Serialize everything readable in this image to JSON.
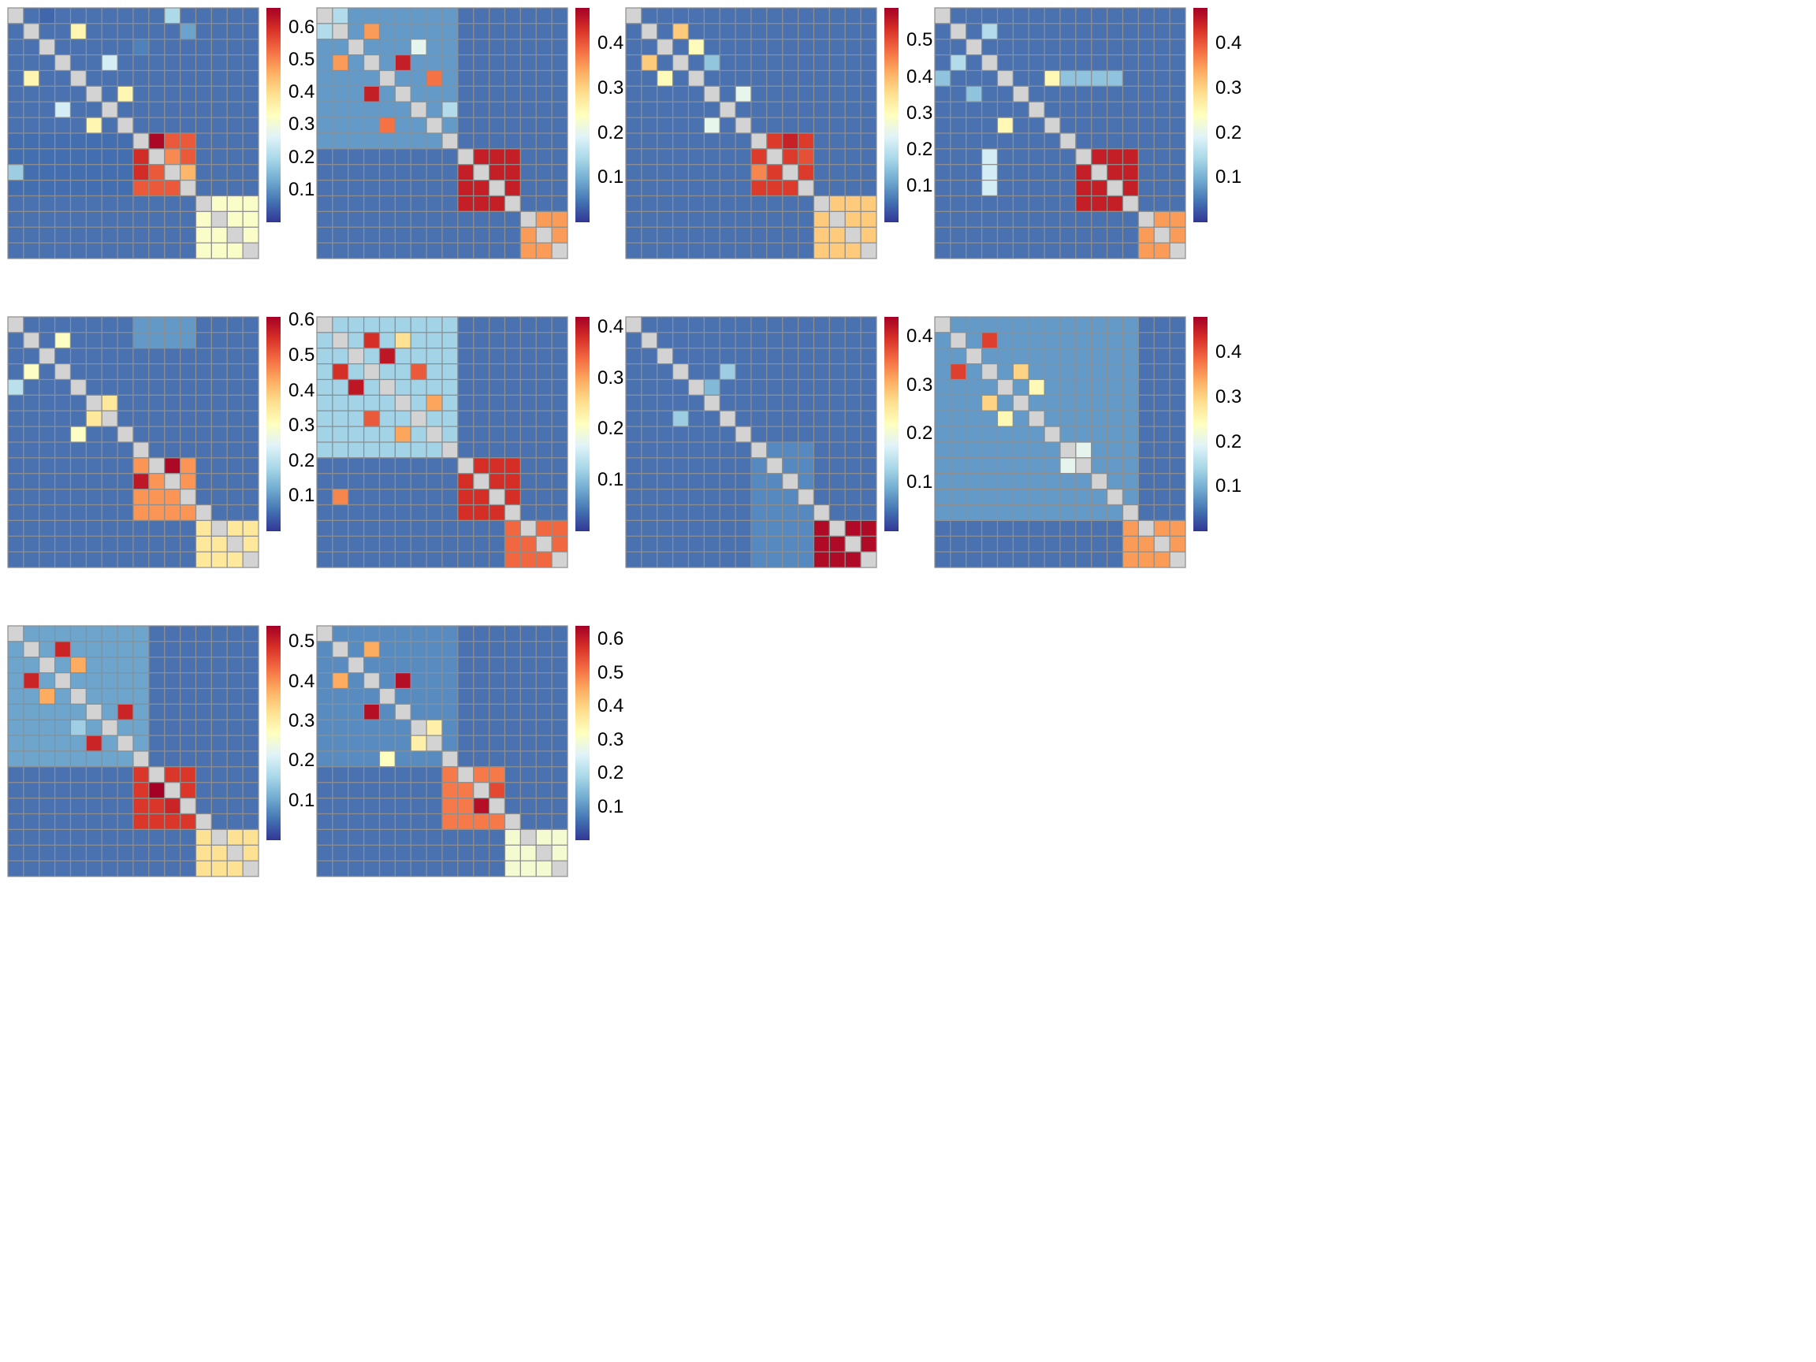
{
  "figure": {
    "layout": "grid",
    "rows": 3,
    "cols": 4
  },
  "colors": {
    "scale": [
      "#313695",
      "#4575b4",
      "#74add1",
      "#abd9e9",
      "#e0f3f8",
      "#ffffbf",
      "#fee090",
      "#fdae61",
      "#f46d43",
      "#d73027",
      "#a50026"
    ],
    "background": "#4a72b0",
    "diagonal": "#d3d3d3",
    "grid": "#8e8e8e"
  },
  "chart_data": [
    {
      "type": "heatmap",
      "size": 16,
      "colorbar": {
        "min": 0,
        "max": 0.66,
        "ticks": [
          0.1,
          0.2,
          0.3,
          0.4,
          0.5,
          0.6
        ],
        "tick_labels": [
          "0.1",
          "0.2",
          "0.3",
          "0.4",
          "0.5",
          "0.6"
        ]
      },
      "blocks": [
        {
          "rows": [
            8,
            11
          ],
          "cols": [
            8,
            11
          ],
          "value": 0.55
        },
        {
          "rows": [
            12,
            15
          ],
          "cols": [
            12,
            15
          ],
          "value": 0.32
        },
        {
          "rows": [
            8,
            11
          ],
          "cols": [
            0,
            7
          ],
          "value": 0.06
        }
      ],
      "cells": [
        [
          0,
          2,
          0.05
        ],
        [
          1,
          4,
          0.35
        ],
        [
          4,
          1,
          0.35
        ],
        [
          3,
          6,
          0.25
        ],
        [
          6,
          3,
          0.25
        ],
        [
          5,
          7,
          0.35
        ],
        [
          7,
          5,
          0.35
        ],
        [
          2,
          8,
          0.08
        ],
        [
          0,
          10,
          0.2
        ],
        [
          10,
          0,
          0.18
        ],
        [
          1,
          11,
          0.12
        ],
        [
          8,
          9,
          0.65
        ],
        [
          9,
          10,
          0.5
        ],
        [
          10,
          11,
          0.45
        ],
        [
          11,
          8,
          0.55
        ],
        [
          9,
          8,
          0.6
        ],
        [
          10,
          8,
          0.6
        ]
      ]
    },
    {
      "type": "heatmap",
      "size": 16,
      "colorbar": {
        "min": 0,
        "max": 0.48,
        "ticks": [
          0.1,
          0.2,
          0.3,
          0.4
        ],
        "tick_labels": [
          "0.1",
          "0.2",
          "0.3",
          "0.4"
        ]
      },
      "blocks": [
        {
          "rows": [
            9,
            12
          ],
          "cols": [
            9,
            12
          ],
          "value": 0.45
        },
        {
          "rows": [
            13,
            15
          ],
          "cols": [
            13,
            15
          ],
          "value": 0.35
        },
        {
          "rows": [
            0,
            8
          ],
          "cols": [
            0,
            8
          ],
          "value": 0.08
        }
      ],
      "cells": [
        [
          1,
          3,
          0.35
        ],
        [
          3,
          1,
          0.35
        ],
        [
          3,
          5,
          0.45
        ],
        [
          5,
          3,
          0.45
        ],
        [
          4,
          7,
          0.38
        ],
        [
          7,
          4,
          0.38
        ],
        [
          6,
          8,
          0.15
        ],
        [
          2,
          6,
          0.2
        ],
        [
          1,
          0,
          0.15
        ],
        [
          0,
          1,
          0.15
        ]
      ]
    },
    {
      "type": "heatmap",
      "size": 16,
      "colorbar": {
        "min": 0,
        "max": 0.59,
        "ticks": [
          0.1,
          0.2,
          0.3,
          0.4,
          0.5
        ],
        "tick_labels": [
          "0.1",
          "0.2",
          "0.3",
          "0.4",
          "0.5"
        ]
      },
      "blocks": [
        {
          "rows": [
            8,
            11
          ],
          "cols": [
            8,
            11
          ],
          "value": 0.52
        },
        {
          "rows": [
            12,
            15
          ],
          "cols": [
            12,
            15
          ],
          "value": 0.38
        }
      ],
      "cells": [
        [
          1,
          3,
          0.38
        ],
        [
          3,
          1,
          0.38
        ],
        [
          2,
          4,
          0.3
        ],
        [
          4,
          2,
          0.3
        ],
        [
          5,
          7,
          0.25
        ],
        [
          7,
          5,
          0.25
        ],
        [
          3,
          5,
          0.15
        ],
        [
          8,
          10,
          0.55
        ],
        [
          9,
          11,
          0.5
        ],
        [
          10,
          8,
          0.45
        ]
      ]
    },
    {
      "type": "heatmap",
      "size": 16,
      "colorbar": {
        "min": 0,
        "max": 0.48,
        "ticks": [
          0.1,
          0.2,
          0.3,
          0.4
        ],
        "tick_labels": [
          "0.1",
          "0.2",
          "0.3",
          "0.4"
        ]
      },
      "blocks": [
        {
          "rows": [
            9,
            12
          ],
          "cols": [
            9,
            12
          ],
          "value": 0.45
        },
        {
          "rows": [
            13,
            15
          ],
          "cols": [
            13,
            15
          ],
          "value": 0.35
        },
        {
          "rows": [
            4,
            4
          ],
          "cols": [
            8,
            11
          ],
          "value": 0.12
        }
      ],
      "cells": [
        [
          1,
          3,
          0.15
        ],
        [
          3,
          1,
          0.15
        ],
        [
          4,
          0,
          0.12
        ],
        [
          7,
          4,
          0.25
        ],
        [
          4,
          7,
          0.25
        ],
        [
          5,
          2,
          0.12
        ],
        [
          9,
          3,
          0.18
        ],
        [
          10,
          3,
          0.18
        ],
        [
          11,
          3,
          0.18
        ]
      ]
    },
    {
      "type": "heatmap",
      "size": 16,
      "colorbar": {
        "min": 0,
        "max": 0.61,
        "ticks": [
          0.1,
          0.2,
          0.3,
          0.4,
          0.5,
          0.6
        ],
        "tick_labels": [
          "0.1",
          "0.2",
          "0.3",
          "0.4",
          "0.5",
          "0.6"
        ]
      },
      "blocks": [
        {
          "rows": [
            9,
            12
          ],
          "cols": [
            8,
            11
          ],
          "value": 0.45
        },
        {
          "rows": [
            13,
            15
          ],
          "cols": [
            12,
            15
          ],
          "value": 0.35
        },
        {
          "rows": [
            0,
            1
          ],
          "cols": [
            8,
            11
          ],
          "value": 0.1
        }
      ],
      "cells": [
        [
          1,
          3,
          0.3
        ],
        [
          3,
          1,
          0.3
        ],
        [
          4,
          0,
          0.2
        ],
        [
          5,
          6,
          0.35
        ],
        [
          6,
          5,
          0.35
        ],
        [
          7,
          4,
          0.3
        ],
        [
          9,
          10,
          0.6
        ],
        [
          10,
          8,
          0.58
        ],
        [
          11,
          9,
          0.45
        ]
      ]
    },
    {
      "type": "heatmap",
      "size": 16,
      "colorbar": {
        "min": 0,
        "max": 0.42,
        "ticks": [
          0.1,
          0.2,
          0.3,
          0.4
        ],
        "tick_labels": [
          "0.1",
          "0.2",
          "0.3",
          "0.4"
        ]
      },
      "blocks": [
        {
          "rows": [
            9,
            12
          ],
          "cols": [
            9,
            12
          ],
          "value": 0.38
        },
        {
          "rows": [
            13,
            15
          ],
          "cols": [
            12,
            15
          ],
          "value": 0.34
        },
        {
          "rows": [
            0,
            8
          ],
          "cols": [
            0,
            8
          ],
          "value": 0.12
        }
      ],
      "cells": [
        [
          1,
          3,
          0.38
        ],
        [
          3,
          1,
          0.38
        ],
        [
          4,
          2,
          0.4
        ],
        [
          2,
          4,
          0.4
        ],
        [
          6,
          3,
          0.35
        ],
        [
          3,
          6,
          0.35
        ],
        [
          7,
          5,
          0.3
        ],
        [
          5,
          7,
          0.3
        ],
        [
          1,
          5,
          0.25
        ],
        [
          11,
          1,
          0.32
        ]
      ]
    },
    {
      "type": "heatmap",
      "size": 16,
      "colorbar": {
        "min": 0,
        "max": 0.44,
        "ticks": [
          0.1,
          0.2,
          0.3,
          0.4
        ],
        "tick_labels": [
          "0.1",
          "0.2",
          "0.3",
          "0.4"
        ]
      },
      "blocks": [
        {
          "rows": [
            10,
            12
          ],
          "cols": [
            8,
            11
          ],
          "value": 0.22
        },
        {
          "rows": [
            13,
            15
          ],
          "cols": [
            12,
            15
          ],
          "value": 0.43
        },
        {
          "rows": [
            8,
            15
          ],
          "cols": [
            8,
            11
          ],
          "value": 0.06
        }
      ],
      "cells": [
        [
          3,
          6,
          0.12
        ],
        [
          6,
          3,
          0.12
        ],
        [
          4,
          5,
          0.1
        ]
      ]
    },
    {
      "type": "heatmap",
      "size": 16,
      "colorbar": {
        "min": 0,
        "max": 0.48,
        "ticks": [
          0.1,
          0.2,
          0.3,
          0.4
        ],
        "tick_labels": [
          "0.1",
          "0.2",
          "0.3",
          "0.4"
        ]
      },
      "blocks": [
        {
          "rows": [
            9,
            12
          ],
          "cols": [
            9,
            12
          ],
          "value": 0.45
        },
        {
          "rows": [
            13,
            15
          ],
          "cols": [
            12,
            15
          ],
          "value": 0.35
        },
        {
          "rows": [
            0,
            12
          ],
          "cols": [
            0,
            12
          ],
          "value": 0.08
        }
      ],
      "cells": [
        [
          1,
          3,
          0.42
        ],
        [
          3,
          1,
          0.42
        ],
        [
          3,
          5,
          0.3
        ],
        [
          5,
          3,
          0.3
        ],
        [
          6,
          4,
          0.25
        ],
        [
          4,
          6,
          0.25
        ],
        [
          8,
          9,
          0.2
        ],
        [
          9,
          8,
          0.2
        ]
      ]
    },
    {
      "type": "heatmap",
      "size": 16,
      "colorbar": {
        "min": 0,
        "max": 0.54,
        "ticks": [
          0.1,
          0.2,
          0.3,
          0.4,
          0.5
        ],
        "tick_labels": [
          "0.1",
          "0.2",
          "0.3",
          "0.4",
          "0.5"
        ]
      },
      "blocks": [
        {
          "rows": [
            9,
            12
          ],
          "cols": [
            8,
            11
          ],
          "value": 0.48
        },
        {
          "rows": [
            13,
            15
          ],
          "cols": [
            12,
            15
          ],
          "value": 0.32
        },
        {
          "rows": [
            0,
            8
          ],
          "cols": [
            0,
            8
          ],
          "value": 0.1
        }
      ],
      "cells": [
        [
          1,
          3,
          0.5
        ],
        [
          3,
          1,
          0.5
        ],
        [
          4,
          2,
          0.38
        ],
        [
          2,
          4,
          0.38
        ],
        [
          5,
          7,
          0.5
        ],
        [
          7,
          5,
          0.5
        ],
        [
          6,
          4,
          0.15
        ],
        [
          10,
          9,
          0.55
        ],
        [
          11,
          10,
          0.5
        ]
      ]
    },
    {
      "type": "heatmap",
      "size": 16,
      "colorbar": {
        "min": 0,
        "max": 0.64,
        "ticks": [
          0.1,
          0.2,
          0.3,
          0.4,
          0.5,
          0.6
        ],
        "tick_labels": [
          "0.1",
          "0.2",
          "0.3",
          "0.4",
          "0.5",
          "0.6"
        ]
      },
      "blocks": [
        {
          "rows": [
            9,
            12
          ],
          "cols": [
            8,
            11
          ],
          "value": 0.5
        },
        {
          "rows": [
            13,
            15
          ],
          "cols": [
            12,
            15
          ],
          "value": 0.3
        },
        {
          "rows": [
            0,
            8
          ],
          "cols": [
            0,
            8
          ],
          "value": 0.09
        }
      ],
      "cells": [
        [
          1,
          3,
          0.45
        ],
        [
          3,
          1,
          0.45
        ],
        [
          3,
          5,
          0.62
        ],
        [
          5,
          3,
          0.62
        ],
        [
          6,
          7,
          0.35
        ],
        [
          7,
          6,
          0.35
        ],
        [
          8,
          4,
          0.32
        ],
        [
          11,
          10,
          0.62
        ],
        [
          10,
          11,
          0.55
        ]
      ]
    }
  ]
}
